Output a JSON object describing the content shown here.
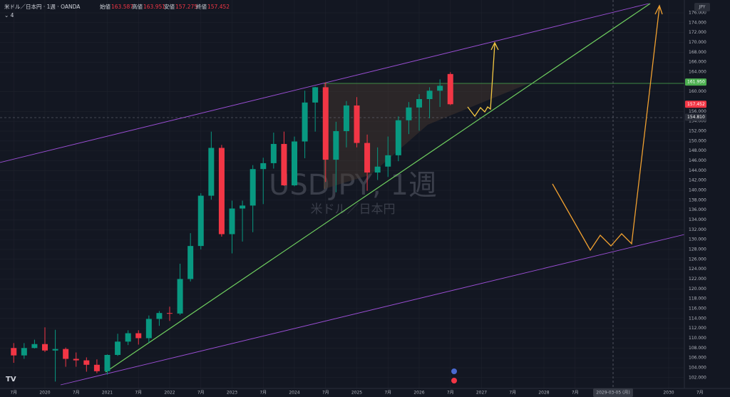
{
  "header": {
    "symbol": "米ドル／日本円 · 1週 · OANDA",
    "indicator_count": "4",
    "currency": "JPY"
  },
  "watermark": {
    "title": "USDJPY, 1週",
    "subtitle": "米ドル／日本円"
  },
  "ohlc_legend": [
    {
      "label": "始値",
      "value": "163.587"
    },
    {
      "label": "高値",
      "value": "163.951"
    },
    {
      "label": "安値",
      "value": "157.275"
    },
    {
      "label": "終値",
      "value": "157.452"
    }
  ],
  "crosshair_date": "2029-03-05 (月)",
  "chart_data": {
    "type": "candlestick",
    "up_color": "#089981",
    "down_color": "#f23645",
    "grid": true,
    "x": [
      "2019-07",
      "2019-09",
      "2019-11",
      "2020-01",
      "2020-03",
      "2020-05",
      "2020-07",
      "2020-09",
      "2020-11",
      "2021-01",
      "2021-03",
      "2021-05",
      "2021-07",
      "2021-09",
      "2021-11",
      "2022-01",
      "2022-03",
      "2022-05",
      "2022-07",
      "2022-09",
      "2022-11",
      "2023-01",
      "2023-03",
      "2023-05",
      "2023-07",
      "2023-09",
      "2023-11",
      "2024-01",
      "2024-03",
      "2024-05",
      "2024-07",
      "2024-09",
      "2024-11",
      "2025-01",
      "2025-03",
      "2025-05",
      "2025-07",
      "2025-09",
      "2025-11",
      "2026-01",
      "2026-03",
      "2026-05",
      "2026-07"
    ],
    "open": [
      108,
      106.5,
      108,
      108.8,
      107.5,
      107.8,
      105.8,
      105.5,
      104.6,
      103.3,
      106.6,
      109.3,
      111.0,
      110.0,
      113.9,
      115.1,
      115.0,
      122.0,
      128.7,
      138.9,
      148.6,
      131.1,
      136.3,
      136.9,
      144.3,
      145.5,
      149.4,
      141.0,
      149.9,
      157.8,
      160.9,
      146.2,
      152.0,
      157.2,
      149.6,
      143.6,
      144.8,
      147.1,
      154.2,
      156.8,
      158.5,
      160.2,
      163.587
    ],
    "high": [
      109,
      109,
      109.7,
      112.2,
      111.7,
      108.1,
      107.1,
      106.1,
      105.7,
      106.7,
      110.9,
      111.6,
      111.6,
      114.6,
      115.5,
      116.4,
      125.1,
      131.3,
      139.4,
      151.9,
      149.2,
      137.9,
      137.9,
      145.1,
      146.6,
      151.7,
      151.9,
      150.9,
      160.2,
      161.0,
      161.9,
      153.9,
      158.1,
      158.9,
      151.3,
      148.7,
      150.9,
      155.0,
      157.9,
      159.5,
      160.9,
      162.5,
      163.951
    ],
    "low": [
      105,
      105.8,
      107.9,
      107.2,
      101.2,
      104.2,
      104.2,
      103.2,
      102.9,
      102.6,
      106.4,
      108.6,
      108.7,
      109.1,
      112.5,
      113.5,
      114.7,
      121.5,
      128.0,
      138.1,
      130.6,
      127.2,
      129.6,
      131.5,
      137.2,
      144.4,
      140.9,
      140.8,
      146.5,
      151.9,
      141.7,
      139.6,
      148.7,
      148.7,
      139.9,
      142.1,
      142.7,
      145.9,
      151.4,
      152.1,
      154.6,
      156.9,
      157.275
    ],
    "close": [
      106.5,
      108,
      108.8,
      107.5,
      107.8,
      105.8,
      105.5,
      104.6,
      103.3,
      106.6,
      109.3,
      111.0,
      110.0,
      113.9,
      115.1,
      115.0,
      122.0,
      128.7,
      138.9,
      148.6,
      131.1,
      136.3,
      136.9,
      144.3,
      145.5,
      149.4,
      141.0,
      149.9,
      157.8,
      160.9,
      146.2,
      152.0,
      157.2,
      149.6,
      143.6,
      144.8,
      147.1,
      154.2,
      156.8,
      158.5,
      160.2,
      161.2,
      157.452
    ],
    "ylim": [
      99.8,
      178.6
    ],
    "yticks": [
      {
        "value": 102,
        "label": "102.000"
      },
      {
        "value": 104,
        "label": "104.000"
      },
      {
        "value": 106,
        "label": "106.000"
      },
      {
        "value": 108,
        "label": "108.000"
      },
      {
        "value": 110,
        "label": "110.000"
      },
      {
        "value": 112,
        "label": "112.000"
      },
      {
        "value": 114,
        "label": "114.000"
      },
      {
        "value": 116,
        "label": "116.000"
      },
      {
        "value": 118,
        "label": "118.000"
      },
      {
        "value": 120,
        "label": "120.000"
      },
      {
        "value": 122,
        "label": "122.000"
      },
      {
        "value": 124,
        "label": "124.000"
      },
      {
        "value": 126,
        "label": "126.000"
      },
      {
        "value": 128,
        "label": "128.000"
      },
      {
        "value": 130,
        "label": "130.000"
      },
      {
        "value": 132,
        "label": "132.000"
      },
      {
        "value": 134,
        "label": "134.000"
      },
      {
        "value": 136,
        "label": "136.000"
      },
      {
        "value": 138,
        "label": "138.000"
      },
      {
        "value": 140,
        "label": "140.000"
      },
      {
        "value": 142,
        "label": "142.000"
      },
      {
        "value": 144,
        "label": "144.000"
      },
      {
        "value": 146,
        "label": "146.000"
      },
      {
        "value": 148,
        "label": "148.000"
      },
      {
        "value": 150,
        "label": "150.000"
      },
      {
        "value": 152,
        "label": "152.000"
      },
      {
        "value": 154,
        "label": "154.000"
      },
      {
        "value": 156,
        "label": "156.000"
      },
      {
        "value": 160,
        "label": "160.000"
      },
      {
        "value": 164,
        "label": "164.000"
      },
      {
        "value": 166,
        "label": "166.000"
      },
      {
        "value": 168,
        "label": "168.000"
      },
      {
        "value": 170,
        "label": "170.000"
      },
      {
        "value": 172,
        "label": "172.000"
      },
      {
        "value": 174,
        "label": "174.000"
      },
      {
        "value": 176,
        "label": "176.000"
      }
    ],
    "xticks": [
      {
        "value": "2019-07",
        "label": "7月"
      },
      {
        "value": "2020-01",
        "label": "2020"
      },
      {
        "value": "2020-07",
        "label": "7月"
      },
      {
        "value": "2021-01",
        "label": "2021"
      },
      {
        "value": "2021-07",
        "label": "7月"
      },
      {
        "value": "2022-01",
        "label": "2022"
      },
      {
        "value": "2022-07",
        "label": "7月"
      },
      {
        "value": "2023-01",
        "label": "2023"
      },
      {
        "value": "2023-07",
        "label": "7月"
      },
      {
        "value": "2024-01",
        "label": "2024"
      },
      {
        "value": "2024-07",
        "label": "7月"
      },
      {
        "value": "2025-01",
        "label": "2025"
      },
      {
        "value": "2025-07",
        "label": "7月"
      },
      {
        "value": "2026-01",
        "label": "2026"
      },
      {
        "value": "2026-07",
        "label": "7月"
      },
      {
        "value": "2027-01",
        "label": "2027"
      },
      {
        "value": "2027-07",
        "label": "7月"
      },
      {
        "value": "2028-01",
        "label": "2028"
      },
      {
        "value": "2028-07",
        "label": "7月"
      },
      {
        "value": "2030-01",
        "label": "2030"
      },
      {
        "value": "2030-07",
        "label": "7月"
      }
    ],
    "price_labels": [
      {
        "value": 161.95,
        "label": "161.950",
        "color": "#4caf50"
      },
      {
        "value": 157.452,
        "label": "157.452",
        "color": "#f23645"
      },
      {
        "value": 154.81,
        "label": "154.810",
        "color": "#2a2e39"
      }
    ]
  }
}
